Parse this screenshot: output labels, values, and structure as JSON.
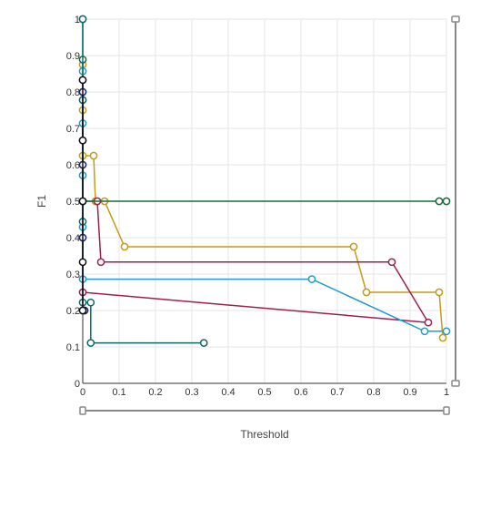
{
  "chart_data": {
    "type": "line",
    "title": "",
    "xlabel": "Threshold",
    "ylabel": "F1",
    "xlim": [
      0,
      1
    ],
    "ylim": [
      0,
      1
    ],
    "xticks": [
      "0",
      "0.1",
      "0.2",
      "0.3",
      "0.4",
      "0.5",
      "0.6",
      "0.7",
      "0.8",
      "0.9",
      "1"
    ],
    "yticks": [
      "0",
      "0.1",
      "0.2",
      "0.3",
      "0.4",
      "0.5",
      "0.6",
      "0.7",
      "0.8",
      "0.9",
      "1"
    ],
    "grid": true,
    "legend": "none",
    "series": [
      {
        "color": "#c49a1b",
        "points": [
          [
            0,
            0.875
          ],
          [
            0,
            0.75
          ],
          [
            0,
            0.625
          ],
          [
            0.03,
            0.625
          ],
          [
            0.035,
            0.5
          ],
          [
            0.06,
            0.5
          ],
          [
            0.115,
            0.375
          ],
          [
            0.745,
            0.375
          ],
          [
            0.78,
            0.25
          ],
          [
            0.98,
            0.25
          ],
          [
            0.99,
            0.125
          ]
        ]
      },
      {
        "color": "#9e1f4f",
        "points": [
          [
            0,
            0.833
          ],
          [
            0,
            0.667
          ],
          [
            0,
            0.5
          ],
          [
            0.04,
            0.5
          ],
          [
            0.05,
            0.333
          ],
          [
            0.85,
            0.333
          ],
          [
            0.95,
            0.167
          ],
          [
            0,
            0.25
          ]
        ]
      },
      {
        "color": "#1f9bd4",
        "points": [
          [
            0,
            1.0
          ],
          [
            0,
            0.857
          ],
          [
            0,
            0.714
          ],
          [
            0,
            0.571
          ],
          [
            0,
            0.429
          ],
          [
            0,
            0.286
          ],
          [
            0.63,
            0.286
          ],
          [
            0.94,
            0.143
          ],
          [
            1.0,
            0.143
          ]
        ]
      },
      {
        "color": "#1a6b3c",
        "points": [
          [
            0,
            0.889
          ],
          [
            0,
            0.778
          ],
          [
            0,
            0.5
          ],
          [
            0.98,
            0.5
          ],
          [
            1.0,
            0.5
          ]
        ]
      },
      {
        "color": "#0b6b6b",
        "points": [
          [
            0,
            1.0
          ],
          [
            0,
            0.778
          ],
          [
            0,
            0.444
          ],
          [
            0,
            0.222
          ],
          [
            0.022,
            0.222
          ],
          [
            0.022,
            0.111
          ],
          [
            0.333,
            0.111
          ]
        ]
      },
      {
        "color": "#1a237e",
        "points": [
          [
            0,
            0.8
          ],
          [
            0,
            0.6
          ],
          [
            0,
            0.4
          ],
          [
            0,
            0.2
          ],
          [
            0.005,
            0.2
          ]
        ]
      },
      {
        "color": "#111111",
        "points": [
          [
            0,
            0.833
          ],
          [
            0,
            0.667
          ],
          [
            0,
            0.5
          ],
          [
            0,
            0.333
          ],
          [
            0,
            0.2
          ]
        ]
      }
    ]
  }
}
